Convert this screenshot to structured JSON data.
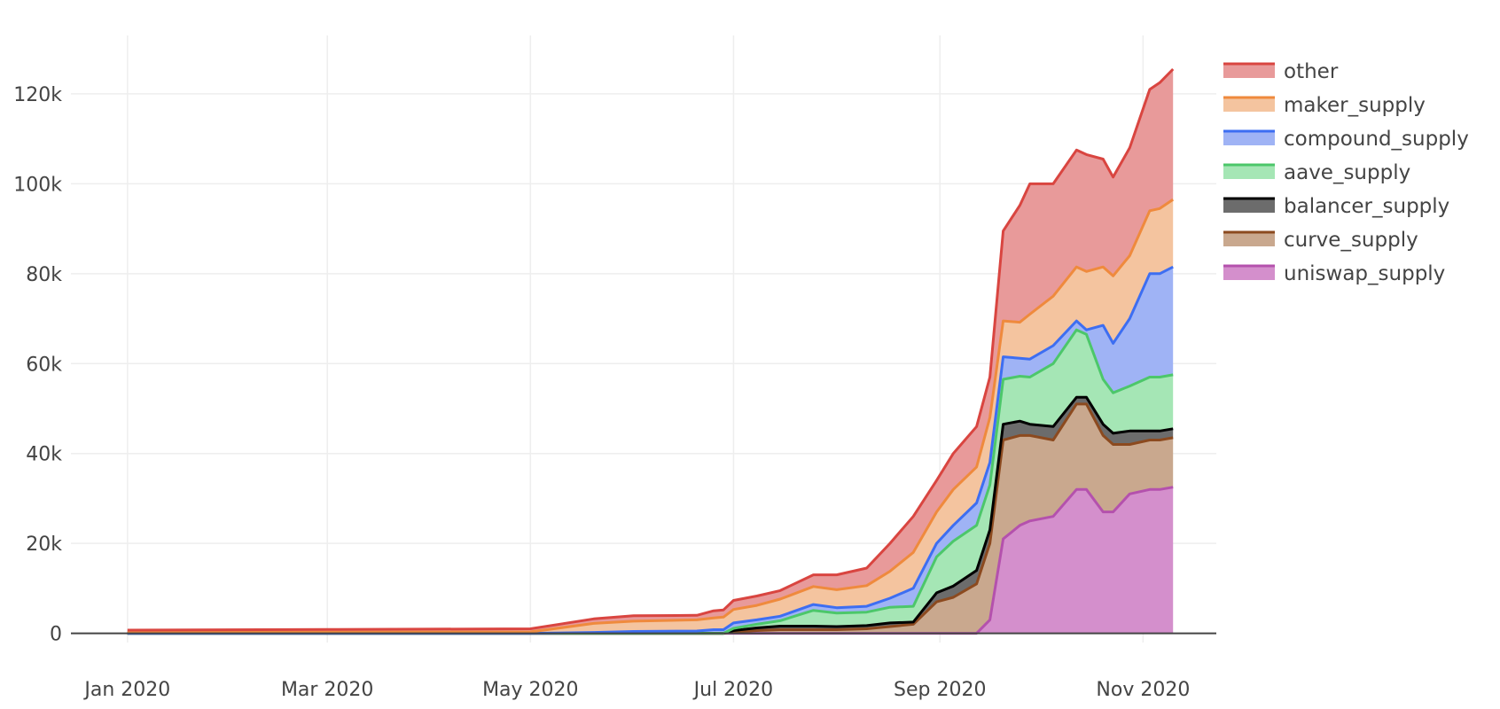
{
  "chart_data": {
    "type": "area",
    "stacked": true,
    "title": "",
    "xlabel": "",
    "ylabel": "",
    "x_ticks": [
      "Jan 2020",
      "Mar 2020",
      "May 2020",
      "Jul 2020",
      "Sep 2020",
      "Nov 2020"
    ],
    "y_ticks": [
      "0",
      "20k",
      "40k",
      "60k",
      "80k",
      "100k",
      "120k"
    ],
    "y_tick_values": [
      0,
      20000,
      40000,
      60000,
      80000,
      100000,
      120000
    ],
    "xlim": [
      "2019-12-15",
      "2020-11-23"
    ],
    "ylim": [
      -6000,
      133000
    ],
    "grid": true,
    "legend_position": "top-right",
    "x": [
      "2020-01-01",
      "2020-03-01",
      "2020-05-01",
      "2020-05-20",
      "2020-06-01",
      "2020-06-20",
      "2020-06-25",
      "2020-06-28",
      "2020-07-01",
      "2020-07-08",
      "2020-07-15",
      "2020-07-25",
      "2020-08-01",
      "2020-08-10",
      "2020-08-17",
      "2020-08-24",
      "2020-08-31",
      "2020-09-05",
      "2020-09-12",
      "2020-09-16",
      "2020-09-20",
      "2020-09-25",
      "2020-09-28",
      "2020-10-05",
      "2020-10-12",
      "2020-10-15",
      "2020-10-20",
      "2020-10-23",
      "2020-10-28",
      "2020-11-03",
      "2020-11-06",
      "2020-11-10"
    ],
    "series": [
      {
        "name": "uniswap_supply",
        "color": "#d48fcc",
        "line_color": "#b451ad",
        "values": [
          0,
          0,
          0,
          0,
          0,
          0,
          0,
          0,
          0,
          0,
          0,
          0,
          0,
          0,
          0,
          0,
          0,
          0,
          0,
          3000,
          21000,
          24000,
          25000,
          26000,
          32000,
          32000,
          27000,
          27000,
          31000,
          32000,
          32000,
          32500
        ]
      },
      {
        "name": "curve_supply",
        "color": "#c9a88e",
        "line_color": "#8c4a1f",
        "values": [
          0,
          0,
          0,
          0,
          0,
          0,
          0,
          0,
          300,
          600,
          800,
          800,
          800,
          1000,
          1500,
          2000,
          7000,
          8000,
          11000,
          17000,
          22000,
          20000,
          19000,
          17000,
          19000,
          19000,
          17000,
          15000,
          11000,
          11000,
          11000,
          11000
        ]
      },
      {
        "name": "balancer_supply",
        "color": "#6c6c6c",
        "line_color": "#000000",
        "values": [
          0,
          0,
          0,
          0,
          0,
          0,
          0,
          0,
          300,
          600,
          800,
          800,
          700,
          700,
          800,
          500,
          2000,
          2500,
          3000,
          3000,
          3500,
          3200,
          2500,
          3000,
          1500,
          1500,
          2500,
          2500,
          3000,
          2000,
          2000,
          2000
        ]
      },
      {
        "name": "aave_supply",
        "color": "#a5e6b5",
        "line_color": "#4cc76a",
        "values": [
          0,
          0,
          0,
          0,
          0,
          0,
          0,
          0,
          500,
          800,
          1200,
          3500,
          3000,
          3000,
          3500,
          3500,
          8000,
          10000,
          10000,
          10000,
          10000,
          10000,
          10500,
          14000,
          15000,
          14000,
          10000,
          9000,
          10000,
          12000,
          12000,
          12000
        ]
      },
      {
        "name": "compound_supply",
        "color": "#9fb3f5",
        "line_color": "#3d6ef2",
        "values": [
          0,
          0,
          0,
          200,
          400,
          500,
          800,
          800,
          1200,
          1000,
          1000,
          1300,
          1200,
          1300,
          2000,
          4000,
          3000,
          3500,
          5000,
          5000,
          5000,
          4000,
          4000,
          4000,
          2000,
          1000,
          12000,
          11000,
          15000,
          23000,
          23000,
          24000
        ]
      },
      {
        "name": "maker_supply",
        "color": "#f4c49f",
        "line_color": "#ef8a3d",
        "values": [
          200,
          250,
          300,
          2000,
          2300,
          2500,
          2600,
          2800,
          3000,
          3200,
          3800,
          4000,
          4000,
          4600,
          6000,
          8000,
          7000,
          8000,
          8000,
          10000,
          8000,
          8000,
          10000,
          11000,
          12000,
          13000,
          13000,
          15000,
          14000,
          14000,
          14500,
          15000
        ]
      },
      {
        "name": "other",
        "color": "#e89a9a",
        "line_color": "#d94540",
        "values": [
          500,
          600,
          700,
          1000,
          1200,
          1000,
          1600,
          1600,
          2000,
          2100,
          1900,
          2600,
          3300,
          3900,
          6200,
          8000,
          7000,
          8000,
          9000,
          9000,
          20000,
          26000,
          29000,
          25000,
          26000,
          26000,
          24000,
          22000,
          24000,
          27000,
          28000,
          29000
        ]
      }
    ]
  }
}
